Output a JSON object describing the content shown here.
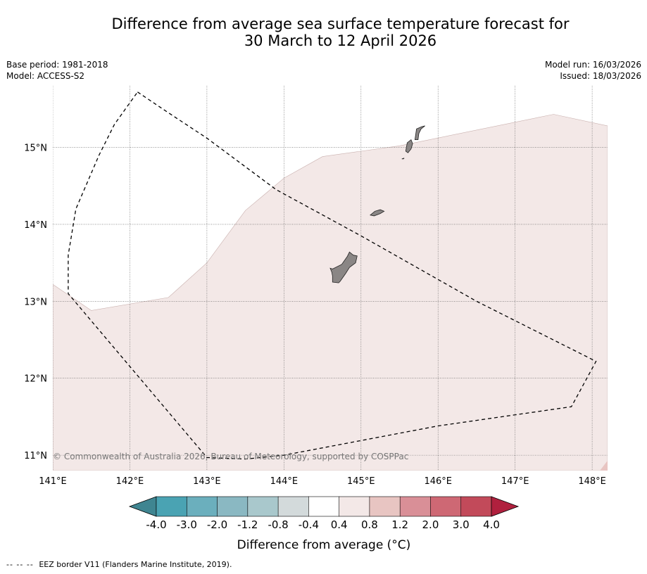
{
  "title": {
    "line1": "Difference from average sea surface temperature forecast for",
    "line2": "30 March to 12 April 2026"
  },
  "meta": {
    "base_period": "Base period: 1981-2018",
    "model": "Model: ACCESS-S2",
    "model_run": "Model run: 16/03/2026",
    "issued": "Issued: 18/03/2026"
  },
  "map": {
    "lon_range": [
      141.0,
      148.2
    ],
    "lat_range": [
      10.8,
      15.8
    ],
    "lon_ticks": [
      "141°E",
      "142°E",
      "143°E",
      "144°E",
      "145°E",
      "146°E",
      "147°E",
      "148°E"
    ],
    "lat_ticks": [
      "15°N",
      "14°N",
      "13°N",
      "12°N",
      "11°N"
    ],
    "lon_tick_values": [
      141,
      142,
      143,
      144,
      145,
      146,
      147,
      148
    ],
    "lat_tick_values": [
      15,
      14,
      13,
      12,
      11
    ],
    "copyright": "© Commonwealth of Australia 2026, Bureau of Meteorology, supported by COSPPac",
    "anomaly_region_color": "#f3e8e7",
    "land_color": "#8a8685",
    "eez_polygon_lonlat": [
      [
        142.1,
        15.72
      ],
      [
        142.5,
        15.45
      ],
      [
        143.0,
        15.12
      ],
      [
        143.9,
        14.45
      ],
      [
        145.0,
        13.85
      ],
      [
        146.5,
        13.0
      ],
      [
        148.05,
        12.22
      ],
      [
        147.73,
        11.63
      ],
      [
        146.0,
        11.38
      ],
      [
        144.0,
        11.0
      ],
      [
        143.5,
        10.95
      ],
      [
        143.0,
        10.97
      ],
      [
        141.2,
        13.1
      ],
      [
        141.2,
        13.6
      ],
      [
        141.3,
        14.2
      ],
      [
        141.6,
        14.9
      ],
      [
        141.8,
        15.3
      ],
      [
        142.1,
        15.72
      ]
    ],
    "anomaly_boundary_lonlat": [
      [
        141.0,
        13.22
      ],
      [
        141.5,
        12.88
      ],
      [
        142.5,
        13.05
      ],
      [
        143.0,
        13.5
      ],
      [
        143.5,
        14.18
      ],
      [
        144.0,
        14.6
      ],
      [
        144.5,
        14.88
      ],
      [
        145.5,
        15.02
      ],
      [
        147.5,
        15.43
      ],
      [
        148.2,
        15.28
      ]
    ],
    "islands_lonlat": [
      {
        "name": "Guam",
        "points": [
          [
            144.63,
            13.42
          ],
          [
            144.75,
            13.48
          ],
          [
            144.82,
            13.58
          ],
          [
            144.85,
            13.64
          ],
          [
            144.9,
            13.6
          ],
          [
            144.95,
            13.59
          ],
          [
            144.93,
            13.5
          ],
          [
            144.85,
            13.44
          ],
          [
            144.8,
            13.36
          ],
          [
            144.73,
            13.26
          ],
          [
            144.71,
            13.24
          ],
          [
            144.63,
            13.25
          ],
          [
            144.63,
            13.33
          ],
          [
            144.62,
            13.38
          ],
          [
            144.6,
            13.43
          ]
        ]
      },
      {
        "name": "Rota",
        "points": [
          [
            145.12,
            14.12
          ],
          [
            145.18,
            14.17
          ],
          [
            145.25,
            14.19
          ],
          [
            145.3,
            14.17
          ],
          [
            145.25,
            14.14
          ],
          [
            145.17,
            14.11
          ]
        ]
      },
      {
        "name": "Tinian",
        "points": [
          [
            145.58,
            14.95
          ],
          [
            145.6,
            15.06
          ],
          [
            145.65,
            15.1
          ],
          [
            145.67,
            15.05
          ],
          [
            145.65,
            14.98
          ],
          [
            145.61,
            14.93
          ]
        ]
      },
      {
        "name": "Saipan",
        "points": [
          [
            145.7,
            15.1
          ],
          [
            145.72,
            15.24
          ],
          [
            145.79,
            15.27
          ],
          [
            145.83,
            15.28
          ],
          [
            145.78,
            15.24
          ],
          [
            145.75,
            15.18
          ],
          [
            145.74,
            15.1
          ]
        ]
      },
      {
        "name": "Aguijan",
        "points": [
          [
            145.53,
            14.85
          ],
          [
            145.56,
            14.86
          ],
          [
            145.55,
            14.85
          ]
        ]
      }
    ]
  },
  "colorbar": {
    "tick_labels": [
      "-4.0",
      "-3.0",
      "-2.0",
      "-1.2",
      "-0.8",
      "-0.4",
      "0.4",
      "0.8",
      "1.2",
      "2.0",
      "3.0",
      "4.0"
    ],
    "colors": [
      "#4aa3b3",
      "#6bafbd",
      "#8ab8c2",
      "#a9c8cc",
      "#d3dadb",
      "#ffffff",
      "#f3e8e7",
      "#e8c5c2",
      "#d98f97",
      "#ce6874",
      "#c24a5a"
    ],
    "low_extend_color": "#3f8591",
    "high_extend_color": "#b0203e",
    "label": "Difference from average (°C)"
  },
  "footer": {
    "dash": "-- -- --",
    "eez_legend": "EEZ border V11 (Flanders Marine Institute, 2019)."
  }
}
